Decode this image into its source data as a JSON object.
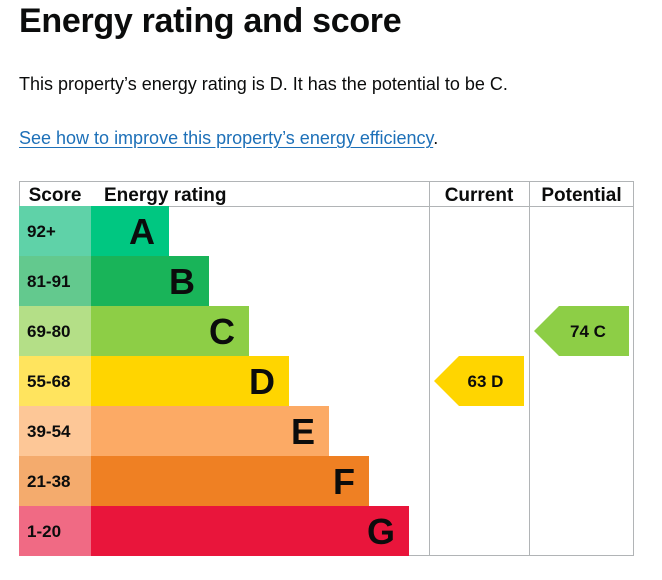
{
  "heading": "Energy rating and score",
  "summary": "This property’s energy rating is D. It has the potential to be C.",
  "improve_link": "See how to improve this property’s energy efficiency",
  "improve_link_suffix": ".",
  "chart_data": {
    "type": "table",
    "headers": {
      "score": "Score",
      "rating": "Energy rating",
      "current": "Current",
      "potential": "Potential"
    },
    "bands": [
      {
        "letter": "A",
        "range": "92+",
        "color": "#00c781",
        "score_color": "#5fd2a8"
      },
      {
        "letter": "B",
        "range": "81-91",
        "color": "#19b459",
        "score_color": "#63c98e"
      },
      {
        "letter": "C",
        "range": "69-80",
        "color": "#8dce46",
        "score_color": "#b4df87"
      },
      {
        "letter": "D",
        "range": "55-68",
        "color": "#ffd500",
        "score_color": "#ffe45e"
      },
      {
        "letter": "E",
        "range": "39-54",
        "color": "#fcaa65",
        "score_color": "#fdc797"
      },
      {
        "letter": "F",
        "range": "21-38",
        "color": "#ef8023",
        "score_color": "#f4ab6d"
      },
      {
        "letter": "G",
        "range": "1-20",
        "color": "#e9153b",
        "score_color": "#f06a84"
      }
    ],
    "current": {
      "score": 63,
      "band": "D",
      "label": "63 D"
    },
    "potential": {
      "score": 74,
      "band": "C",
      "label": "74 C"
    }
  }
}
